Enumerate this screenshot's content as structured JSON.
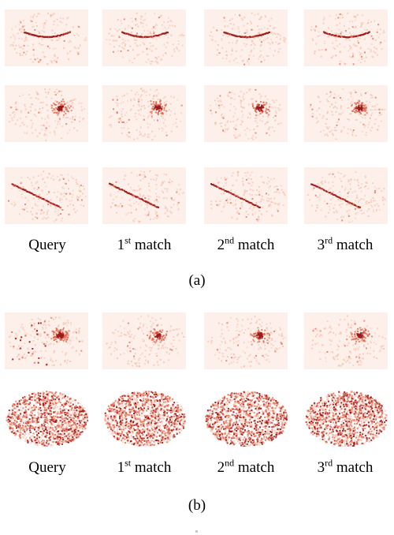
{
  "panel_a": {
    "caption": "(a)",
    "labels": [
      {
        "main": "Query",
        "sup": "",
        "tail": ""
      },
      {
        "main": "1",
        "sup": "st",
        "tail": " match"
      },
      {
        "main": "2",
        "sup": "nd",
        "tail": " match"
      },
      {
        "main": "3",
        "sup": "rd",
        "tail": " match"
      }
    ],
    "rows": [
      {
        "pattern": "arc"
      },
      {
        "pattern": "blob"
      },
      {
        "pattern": "diagonal"
      }
    ]
  },
  "panel_b": {
    "caption": "(b)",
    "labels": [
      {
        "main": "Query",
        "sup": "",
        "tail": ""
      },
      {
        "main": "1",
        "sup": "st",
        "tail": " match"
      },
      {
        "main": "2",
        "sup": "nd",
        "tail": " match"
      },
      {
        "main": "3",
        "sup": "rd",
        "tail": " match"
      }
    ],
    "rows": [
      {
        "pattern": "blob"
      },
      {
        "pattern": "dense-ellipse"
      }
    ]
  },
  "colors": {
    "background_tint": "#fdf0ea",
    "light": "#f4b7a2",
    "mid": "#e0634a",
    "dark": "#9e1b1b"
  }
}
